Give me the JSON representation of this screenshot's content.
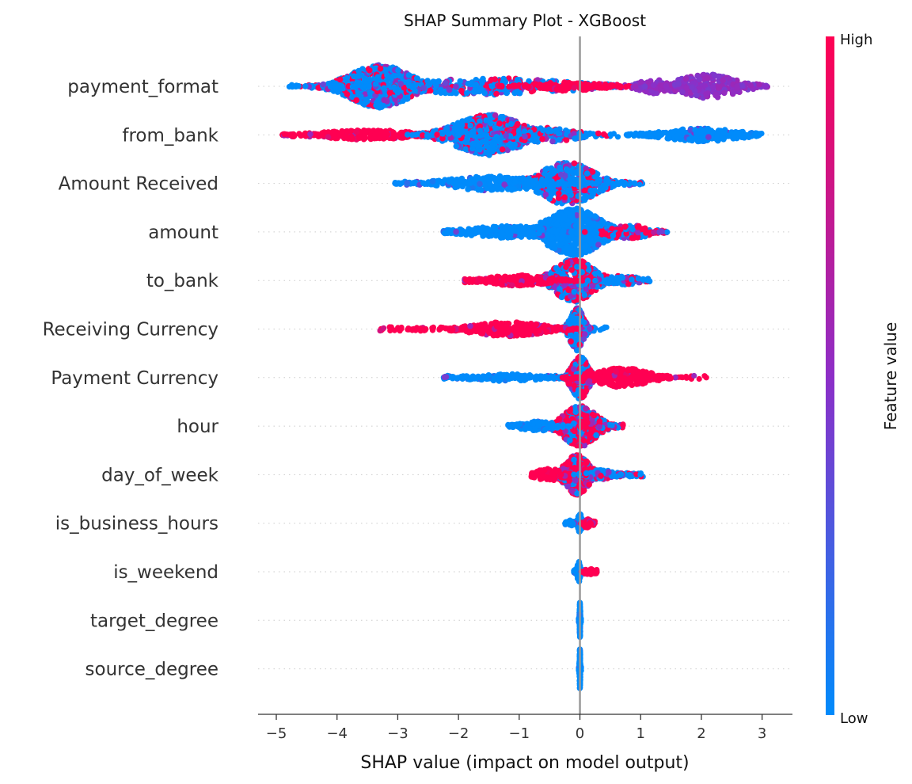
{
  "chart_data": {
    "type": "scatter",
    "title": "SHAP Summary Plot - XGBoost",
    "xlabel": "SHAP value (impact on model output)",
    "ylabel": "",
    "xlim": [
      -5.3,
      3.5
    ],
    "xticks": [
      -5,
      -4,
      -3,
      -2,
      -1,
      0,
      1,
      2,
      3
    ],
    "xtick_labels": [
      "−5",
      "−4",
      "−3",
      "−2",
      "−1",
      "0",
      "1",
      "2",
      "3"
    ],
    "grid": false,
    "colorbar": {
      "title": "Feature value",
      "high_label": "High",
      "low_label": "Low",
      "low_color": "#008bfb",
      "mid_color": "#8d2ec7",
      "high_color": "#ff0052"
    },
    "features": [
      {
        "name": "payment_format",
        "range": [
          -4.85,
          3.1
        ],
        "clusters": [
          {
            "center": -3.3,
            "spread": 0.45,
            "height": 0.9,
            "count": 700,
            "color": "mixed_low"
          },
          {
            "center": -1.5,
            "spread": 1.2,
            "height": 0.35,
            "count": 300,
            "color": "mixed_low"
          },
          {
            "center": -0.2,
            "spread": 0.5,
            "height": 0.18,
            "count": 120,
            "color": "high"
          },
          {
            "center": 1.2,
            "spread": 0.2,
            "height": 0.3,
            "count": 90,
            "color": "mid"
          },
          {
            "center": 2.1,
            "spread": 0.45,
            "height": 0.5,
            "count": 250,
            "color": "mid"
          }
        ]
      },
      {
        "name": "from_bank",
        "range": [
          -4.9,
          3.0
        ],
        "clusters": [
          {
            "center": -3.5,
            "spread": 0.7,
            "height": 0.2,
            "count": 250,
            "color": "high"
          },
          {
            "center": -1.5,
            "spread": 0.5,
            "height": 0.85,
            "count": 650,
            "color": "mixed_low"
          },
          {
            "center": -0.6,
            "spread": 0.5,
            "height": 0.3,
            "count": 180,
            "color": "mixed_low"
          },
          {
            "center": 2.0,
            "spread": 0.55,
            "height": 0.28,
            "count": 220,
            "color": "low"
          }
        ]
      },
      {
        "name": "Amount Received",
        "range": [
          -3.05,
          1.05
        ],
        "clusters": [
          {
            "center": -0.2,
            "spread": 0.4,
            "height": 0.9,
            "count": 450,
            "color": "mixed_low"
          },
          {
            "center": -1.4,
            "spread": 0.7,
            "height": 0.3,
            "count": 300,
            "color": "low"
          }
        ]
      },
      {
        "name": "amount",
        "range": [
          -2.25,
          1.45
        ],
        "clusters": [
          {
            "center": -0.1,
            "spread": 0.4,
            "height": 1.0,
            "count": 650,
            "color": "low"
          },
          {
            "center": -1.2,
            "spread": 0.6,
            "height": 0.25,
            "count": 220,
            "color": "low"
          },
          {
            "center": 0.8,
            "spread": 0.3,
            "height": 0.3,
            "count": 120,
            "color": "mixed_high"
          }
        ]
      },
      {
        "name": "to_bank",
        "range": [
          -1.9,
          1.15
        ],
        "clusters": [
          {
            "center": -0.1,
            "spread": 0.3,
            "height": 0.9,
            "count": 450,
            "color": "mixed"
          },
          {
            "center": -1.0,
            "spread": 0.45,
            "height": 0.22,
            "count": 180,
            "color": "high"
          },
          {
            "center": 0.7,
            "spread": 0.25,
            "height": 0.2,
            "count": 90,
            "color": "mixed_low"
          }
        ]
      },
      {
        "name": "Receiving Currency",
        "range": [
          -3.35,
          0.45
        ],
        "clusters": [
          {
            "center": -0.05,
            "spread": 0.1,
            "height": 0.9,
            "count": 300,
            "color": "mixed_low"
          },
          {
            "center": -1.2,
            "spread": 0.55,
            "height": 0.3,
            "count": 250,
            "color": "high"
          }
        ]
      },
      {
        "name": "Payment Currency",
        "range": [
          -2.25,
          2.1
        ],
        "clusters": [
          {
            "center": 0.0,
            "spread": 0.12,
            "height": 0.9,
            "count": 350,
            "color": "mixed"
          },
          {
            "center": -1.2,
            "spread": 0.55,
            "height": 0.15,
            "count": 120,
            "color": "low"
          },
          {
            "center": 0.7,
            "spread": 0.4,
            "height": 0.4,
            "count": 250,
            "color": "high"
          }
        ]
      },
      {
        "name": "hour",
        "range": [
          -1.2,
          0.75
        ],
        "clusters": [
          {
            "center": 0.0,
            "spread": 0.25,
            "height": 0.85,
            "count": 450,
            "color": "mixed_high"
          },
          {
            "center": -0.7,
            "spread": 0.25,
            "height": 0.2,
            "count": 100,
            "color": "low"
          }
        ]
      },
      {
        "name": "day_of_week",
        "range": [
          -0.8,
          1.05
        ],
        "clusters": [
          {
            "center": -0.05,
            "spread": 0.18,
            "height": 0.85,
            "count": 400,
            "color": "mixed_high"
          },
          {
            "center": -0.5,
            "spread": 0.2,
            "height": 0.25,
            "count": 80,
            "color": "high"
          },
          {
            "center": 0.35,
            "spread": 0.2,
            "height": 0.2,
            "count": 90,
            "color": "mixed_low"
          }
        ]
      },
      {
        "name": "is_business_hours",
        "range": [
          -0.25,
          0.25
        ],
        "clusters": [
          {
            "center": 0.0,
            "spread": 0.03,
            "height": 0.4,
            "count": 90,
            "color": "low"
          },
          {
            "center": 0.12,
            "spread": 0.05,
            "height": 0.2,
            "count": 40,
            "color": "high"
          },
          {
            "center": -0.15,
            "spread": 0.04,
            "height": 0.12,
            "count": 25,
            "color": "low"
          }
        ]
      },
      {
        "name": "is_weekend",
        "range": [
          -0.1,
          0.28
        ],
        "clusters": [
          {
            "center": -0.02,
            "spread": 0.02,
            "height": 0.45,
            "count": 80,
            "color": "low"
          },
          {
            "center": 0.15,
            "spread": 0.06,
            "height": 0.15,
            "count": 35,
            "color": "high"
          }
        ]
      },
      {
        "name": "target_degree",
        "range": [
          -0.02,
          0.02
        ],
        "clusters": [
          {
            "center": 0.0,
            "spread": 0.005,
            "height": 0.85,
            "count": 90,
            "color": "low"
          }
        ]
      },
      {
        "name": "source_degree",
        "range": [
          -0.02,
          0.02
        ],
        "clusters": [
          {
            "center": 0.0,
            "spread": 0.005,
            "height": 0.85,
            "count": 90,
            "color": "low"
          }
        ]
      }
    ]
  }
}
